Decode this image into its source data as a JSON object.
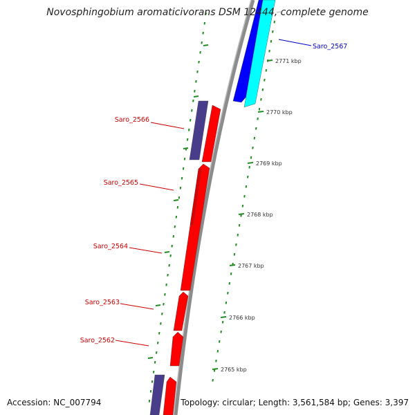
{
  "title": "Novosphingobium aromaticivorans DSM 12444, complete genome",
  "footer": {
    "accession_label": "Accession:",
    "accession": "NC_007794",
    "topology_label": "Topology:",
    "topology": "circular",
    "length_label": "Length:",
    "length": "3,561,584 bp",
    "genes_label": "Genes:",
    "genes": "3,397"
  },
  "colors": {
    "forward_gene": "#ff0000",
    "reverse_gene": "#0000ff",
    "cyan_feature": "#00ffff",
    "slate_feature": "#483d8b",
    "backbone": "#8c8c8c",
    "ticks": "#228b22"
  },
  "ticks": [
    "2771 kbp",
    "2770 kbp",
    "2769 kbp",
    "2768 kbp",
    "2767 kbp",
    "2766 kbp",
    "2765 kbp"
  ],
  "gene_labels": [
    {
      "name": "Saro_2567",
      "color": "#0000cc"
    },
    {
      "name": "Saro_2566",
      "color": "#cc0000"
    },
    {
      "name": "Saro_2565",
      "color": "#cc0000"
    },
    {
      "name": "Saro_2564",
      "color": "#cc0000"
    },
    {
      "name": "Saro_2563",
      "color": "#cc0000"
    },
    {
      "name": "Saro_2562",
      "color": "#cc0000"
    }
  ]
}
